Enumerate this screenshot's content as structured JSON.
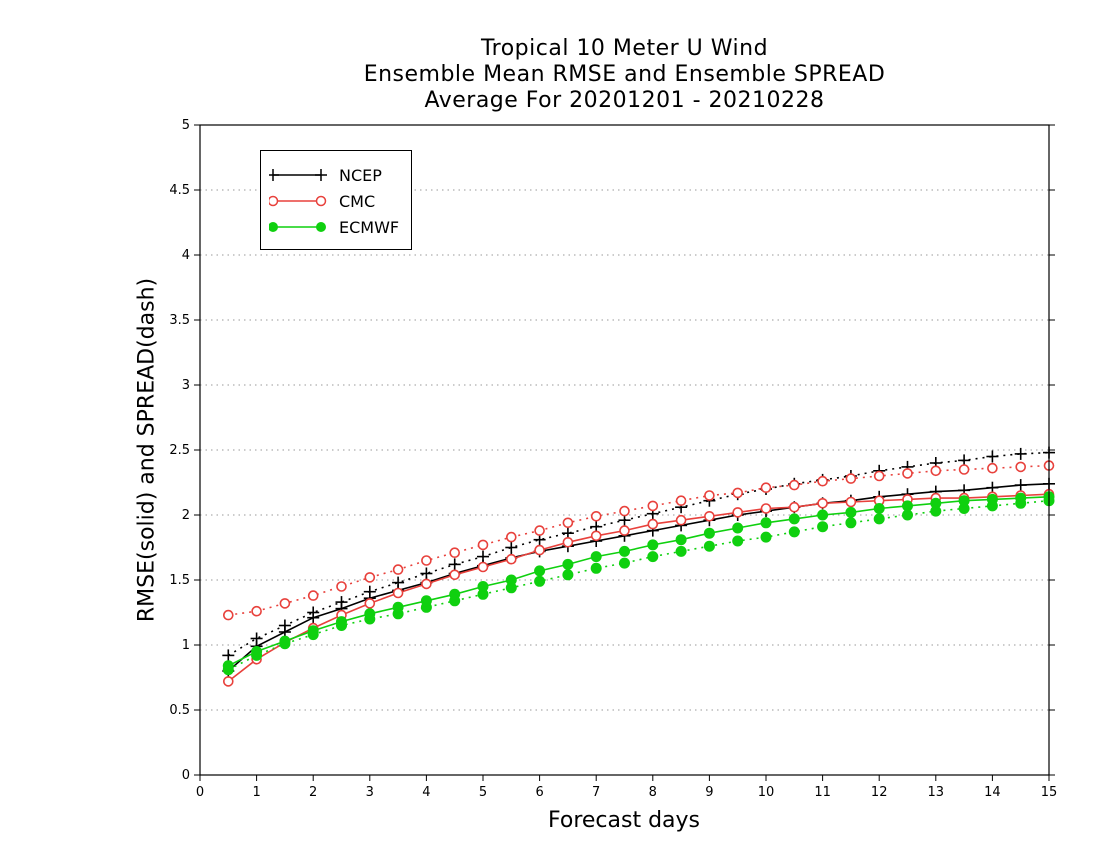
{
  "chart_data": {
    "type": "line",
    "title": [
      "Tropical 10 Meter U Wind",
      "Ensemble Mean RMSE and Ensemble SPREAD",
      "Average For 20201201 - 20210228"
    ],
    "xlabel": "Forecast days",
    "ylabel": "RMSE(solid) and SPREAD(dash)",
    "xlim": [
      0,
      15
    ],
    "ylim": [
      0,
      5
    ],
    "xticks": [
      "0",
      "1",
      "2",
      "3",
      "4",
      "5",
      "6",
      "7",
      "8",
      "9",
      "10",
      "11",
      "12",
      "13",
      "14",
      "15"
    ],
    "yticks": [
      "0",
      "0.5",
      "1",
      "1.5",
      "2",
      "2.5",
      "3",
      "3.5",
      "4",
      "4.5",
      "5"
    ],
    "grid": "horizontal dotted",
    "legend_position": "top-left",
    "x": [
      0.5,
      1,
      1.5,
      2,
      2.5,
      3,
      3.5,
      4,
      4.5,
      5,
      5.5,
      6,
      6.5,
      7,
      7.5,
      8,
      8.5,
      9,
      9.5,
      10,
      10.5,
      11,
      11.5,
      12,
      12.5,
      13,
      13.5,
      14,
      14.5,
      15
    ],
    "series": [
      {
        "name": "NCEP",
        "color": "#000000",
        "marker": "plus",
        "rmse": [
          0.8,
          0.99,
          1.1,
          1.21,
          1.28,
          1.36,
          1.42,
          1.48,
          1.55,
          1.61,
          1.67,
          1.72,
          1.76,
          1.8,
          1.84,
          1.88,
          1.92,
          1.96,
          2.0,
          2.03,
          2.06,
          2.09,
          2.11,
          2.14,
          2.16,
          2.18,
          2.19,
          2.21,
          2.23,
          2.24
        ],
        "spread": [
          0.92,
          1.05,
          1.15,
          1.25,
          1.33,
          1.41,
          1.48,
          1.55,
          1.62,
          1.68,
          1.75,
          1.81,
          1.86,
          1.91,
          1.96,
          2.01,
          2.06,
          2.11,
          2.16,
          2.2,
          2.24,
          2.27,
          2.3,
          2.34,
          2.37,
          2.4,
          2.42,
          2.45,
          2.47,
          2.48
        ]
      },
      {
        "name": "CMC",
        "color": "#e8413c",
        "marker": "open-circle",
        "rmse": [
          0.72,
          0.89,
          1.02,
          1.13,
          1.23,
          1.32,
          1.4,
          1.47,
          1.54,
          1.6,
          1.66,
          1.73,
          1.79,
          1.84,
          1.88,
          1.93,
          1.96,
          1.99,
          2.02,
          2.05,
          2.06,
          2.09,
          2.1,
          2.11,
          2.12,
          2.13,
          2.13,
          2.14,
          2.15,
          2.16
        ],
        "spread": [
          1.23,
          1.26,
          1.32,
          1.38,
          1.45,
          1.52,
          1.58,
          1.65,
          1.71,
          1.77,
          1.83,
          1.88,
          1.94,
          1.99,
          2.03,
          2.07,
          2.11,
          2.15,
          2.17,
          2.21,
          2.23,
          2.26,
          2.28,
          2.3,
          2.32,
          2.34,
          2.35,
          2.36,
          2.37,
          2.38
        ]
      },
      {
        "name": "ECMWF",
        "color": "#0fd00f",
        "marker": "filled-circle",
        "rmse": [
          0.84,
          0.95,
          1.03,
          1.11,
          1.18,
          1.24,
          1.29,
          1.34,
          1.39,
          1.45,
          1.5,
          1.57,
          1.62,
          1.68,
          1.72,
          1.77,
          1.81,
          1.86,
          1.9,
          1.94,
          1.97,
          2.0,
          2.02,
          2.05,
          2.07,
          2.09,
          2.11,
          2.12,
          2.13,
          2.14
        ],
        "spread": [
          0.81,
          0.92,
          1.01,
          1.08,
          1.15,
          1.2,
          1.24,
          1.29,
          1.34,
          1.39,
          1.44,
          1.49,
          1.54,
          1.59,
          1.63,
          1.68,
          1.72,
          1.76,
          1.8,
          1.83,
          1.87,
          1.91,
          1.94,
          1.97,
          2.0,
          2.03,
          2.05,
          2.07,
          2.09,
          2.11
        ]
      }
    ]
  }
}
